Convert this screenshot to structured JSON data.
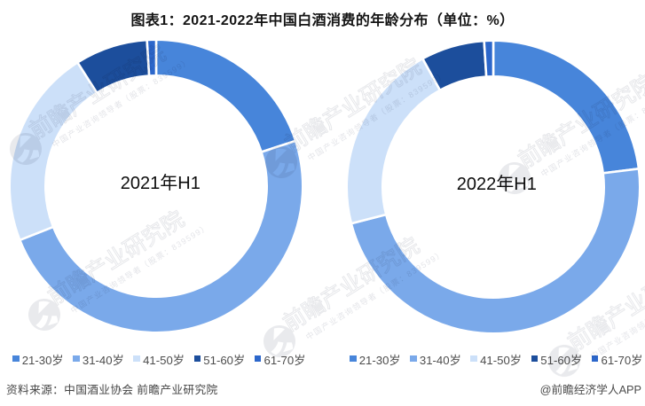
{
  "header": {
    "title": "图表1：2021-2022年中国白酒消费的年龄分布（单位：%）"
  },
  "footer": {
    "source_note": "资料来源：中国酒业协会 前瞻产业研究院",
    "credit": "@前瞻经济学人APP"
  },
  "watermark": {
    "brand": "前瞻产业研究院",
    "tagline": "中国产业咨询领导者（股票：839599）"
  },
  "palette": {
    "age_21_30": "#4785DA",
    "age_31_40": "#7AA9EA",
    "age_41_50": "#CCE0F9",
    "age_51_60": "#1C4E9C",
    "age_61_70": "#2C67CB",
    "slice_border": "#FFFFFF"
  },
  "chart_data": [
    {
      "type": "pie",
      "subtype": "donut",
      "center_label": "2021年H1",
      "unit": "%",
      "categories": [
        "21-30岁",
        "31-40岁",
        "41-50岁",
        "51-60岁",
        "61-70岁"
      ],
      "values": [
        20,
        49,
        22,
        8,
        1
      ],
      "colors": [
        "#4785DA",
        "#7AA9EA",
        "#CCE0F9",
        "#1C4E9C",
        "#2C67CB"
      ],
      "start_angle_deg": 0,
      "direction": "clockwise",
      "inner_radius_ratio": 0.77,
      "legend_position": "bottom"
    },
    {
      "type": "pie",
      "subtype": "donut",
      "center_label": "2022年H1",
      "unit": "%",
      "categories": [
        "21-30岁",
        "31-40岁",
        "41-50岁",
        "51-60岁",
        "61-70岁"
      ],
      "values": [
        23,
        48,
        21,
        7,
        1
      ],
      "colors": [
        "#4785DA",
        "#7AA9EA",
        "#CCE0F9",
        "#1C4E9C",
        "#2C67CB"
      ],
      "start_angle_deg": 0,
      "direction": "clockwise",
      "inner_radius_ratio": 0.77,
      "legend_position": "bottom"
    }
  ]
}
